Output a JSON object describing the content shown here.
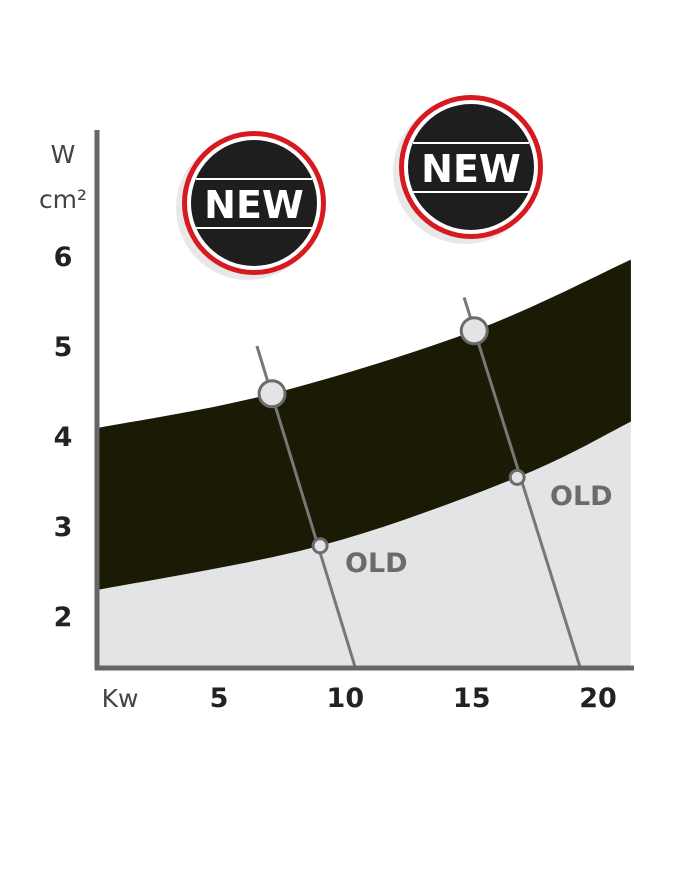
{
  "chart_data": {
    "type": "area",
    "title": "",
    "xlabel": "Kw",
    "ylabel_line1": "W",
    "ylabel_line2": "cm²",
    "xlim": [
      0.2,
      21.3
    ],
    "ylim": [
      1.42,
      6.5
    ],
    "x_ticks": [
      5,
      10,
      15,
      20
    ],
    "x_tick_labels": [
      "5",
      "10",
      "15",
      "20"
    ],
    "y_ticks": [
      6,
      5,
      4,
      3,
      2
    ],
    "y_tick_labels": [
      "6",
      "5",
      "4",
      "3",
      "2"
    ],
    "grid": false,
    "band_upper": [
      [
        0.2,
        4.09
      ],
      [
        7.1,
        4.47
      ],
      [
        15.1,
        5.17
      ],
      [
        21.3,
        5.96
      ]
    ],
    "band_lower": [
      [
        0.2,
        2.29
      ],
      [
        9.0,
        2.78
      ],
      [
        16.8,
        3.54
      ],
      [
        21.3,
        4.16
      ]
    ],
    "lines": [
      {
        "from": [
          6.5,
          5.0
        ],
        "to": [
          10.4,
          1.42
        ],
        "new_point": [
          7.1,
          4.47
        ],
        "old_point": [
          9.0,
          2.78
        ],
        "old_label": "OLD",
        "badge_label": "NEW"
      },
      {
        "from": [
          14.7,
          5.54
        ],
        "to": [
          19.3,
          1.42
        ],
        "new_point": [
          15.1,
          5.17
        ],
        "old_point": [
          16.8,
          3.54
        ],
        "old_label": "OLD",
        "badge_label": "NEW"
      }
    ],
    "colors": {
      "band": "#1a1a05",
      "below": "#e3e4e6",
      "axis": "#666666",
      "badge_ring": "#d71920",
      "badge_fill": "#1e1e1e"
    }
  }
}
